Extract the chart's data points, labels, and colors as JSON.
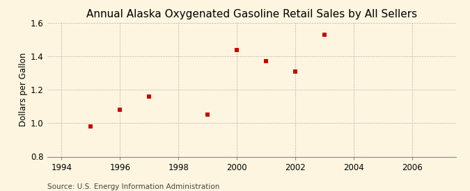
{
  "title": "Annual Alaska Oxygenated Gasoline Retail Sales by All Sellers",
  "ylabel": "Dollars per Gallon",
  "source": "Source: U.S. Energy Information Administration",
  "background_color": "#fdf5e0",
  "x_data": [
    1995,
    1996,
    1997,
    1999,
    2000,
    2001,
    2002,
    2003
  ],
  "y_data": [
    0.98,
    1.08,
    1.16,
    1.05,
    1.44,
    1.37,
    1.31,
    1.53
  ],
  "xlim": [
    1993.5,
    2007.5
  ],
  "ylim": [
    0.8,
    1.6
  ],
  "xticks": [
    1994,
    1996,
    1998,
    2000,
    2002,
    2004,
    2006
  ],
  "yticks": [
    0.8,
    1.0,
    1.2,
    1.4,
    1.6
  ],
  "marker_color": "#cc0000",
  "marker": "s",
  "marker_size": 4,
  "grid_color": "#999999",
  "title_fontsize": 11,
  "label_fontsize": 8.5,
  "tick_fontsize": 8.5,
  "source_fontsize": 7.5
}
